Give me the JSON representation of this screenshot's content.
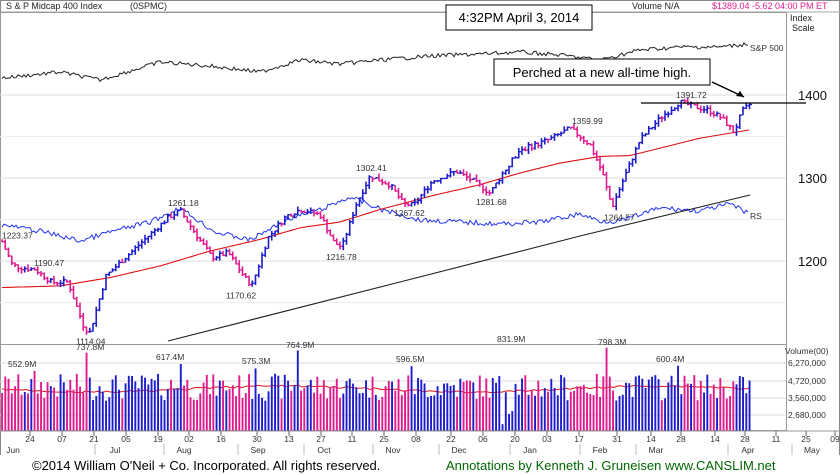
{
  "header": {
    "title": "S & P Midcap 400 Index",
    "symbol": "(0SPMC)",
    "volume": "Volume N/A",
    "quote": "$1389.04 -5.62",
    "time": "04:00 PM ET",
    "scale_label_1": "Index",
    "scale_label_2": "Scale"
  },
  "timestamp": "4:32PM April 3, 2014",
  "callout": "Perched at a new all-time high.",
  "labels": {
    "sp500": "S&P 500",
    "rs": "RS",
    "volume_units": "Volume(00)"
  },
  "footer": {
    "copyright": "©2014 William O'Neil + Co. Incorporated. All rights reserved.",
    "annotations": "Annotations by Kenneth J. Gruneisen www.CANSLIM.net"
  },
  "colors": {
    "up": "#1d1dcc",
    "down": "#e01b8e",
    "moving_avg_50": "#e01010",
    "moving_avg_200": "#222222",
    "relative_strength": "#2233ee",
    "sp500_line": "#222222",
    "footer_annotations": "#006600",
    "timestamp_border": "#000000"
  },
  "chart_data": {
    "type": "bar",
    "price_axis": {
      "ticks": [
        1200,
        1300,
        1400
      ],
      "tick_labels": [
        "1200",
        "1300",
        "1400"
      ]
    },
    "volume_axis": {
      "ticks": [
        2680000,
        3560000,
        4720000,
        6270000
      ],
      "tick_labels": [
        "2,680,000",
        "3,560,000",
        "4,720,000",
        "6,270,000"
      ]
    },
    "x_ticks": [
      "24",
      "07",
      "21",
      "05",
      "19",
      "02",
      "16",
      "30",
      "13",
      "27",
      "11",
      "25",
      "08",
      "22",
      "06",
      "20",
      "03",
      "17",
      "31",
      "14",
      "28",
      "14",
      "28",
      "11",
      "25",
      "09"
    ],
    "month_labels": [
      "Jun",
      "Jul",
      "Aug",
      "Sep",
      "Oct",
      "Nov",
      "Dec",
      "Jan",
      "Feb",
      "Mar",
      "Apr",
      "May"
    ],
    "price_annotations": [
      {
        "text": "1223.37",
        "value": 1223.37
      },
      {
        "text": "1190.47",
        "value": 1190.47
      },
      {
        "text": "1114.04",
        "value": 1114.04
      },
      {
        "text": "1261.18",
        "value": 1261.18
      },
      {
        "text": "1170.62",
        "value": 1170.62
      },
      {
        "text": "1216.78",
        "value": 1216.78
      },
      {
        "text": "1302.41",
        "value": 1302.41
      },
      {
        "text": "1267.62",
        "value": 1267.62
      },
      {
        "text": "1281.68",
        "value": 1281.68
      },
      {
        "text": "1359.99",
        "value": 1359.99
      },
      {
        "text": "1264.57",
        "value": 1264.57
      },
      {
        "text": "1391.72",
        "value": 1391.72
      }
    ],
    "volume_annotations": [
      "552.9M",
      "737.8M",
      "617.4M",
      "575.3M",
      "764.9M",
      "596.5M",
      "831.9M",
      "798.3M",
      "600.4M"
    ],
    "series": [
      {
        "name": "S&P 500",
        "values": []
      },
      {
        "name": "RS",
        "values": []
      }
    ]
  }
}
